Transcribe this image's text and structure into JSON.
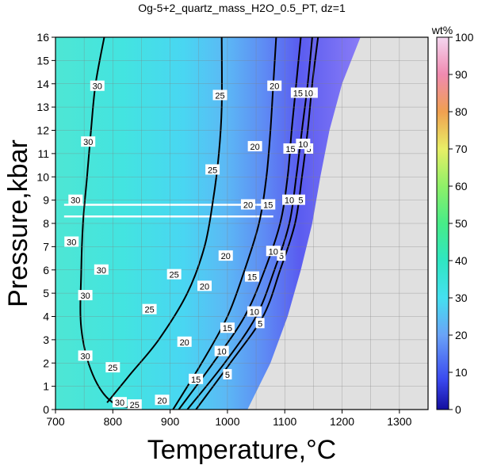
{
  "chart_data": {
    "type": "heatmap",
    "title": "Og-5+2_quartz_mass_H2O_0.5_PT, dz=1",
    "xlabel": "Temperature,°C",
    "ylabel": "Pressure,kbar",
    "xlim": [
      700,
      1350
    ],
    "ylim": [
      0,
      16
    ],
    "xticks": [
      700,
      800,
      900,
      1000,
      1100,
      1200,
      1300
    ],
    "yticks": [
      0,
      1,
      2,
      3,
      4,
      5,
      6,
      7,
      8,
      9,
      10,
      11,
      12,
      13,
      14,
      15,
      16
    ],
    "grid": true,
    "colorbar": {
      "label": "wt%",
      "range": [
        0,
        100
      ],
      "ticks": [
        0,
        10,
        20,
        30,
        40,
        50,
        60,
        70,
        80,
        90,
        100
      ]
    },
    "no_data_color": "#e0e0e0",
    "solidus_boundary": [
      [
        1035,
        0
      ],
      [
        1075,
        2
      ],
      [
        1105,
        4
      ],
      [
        1128,
        6
      ],
      [
        1148,
        8
      ],
      [
        1162,
        10
      ],
      [
        1178,
        12
      ],
      [
        1200,
        14
      ],
      [
        1232,
        16
      ]
    ],
    "contours": [
      {
        "level": 5,
        "points": [
          [
            945,
            0
          ],
          [
            1005,
            2
          ],
          [
            1062,
            4
          ],
          [
            1092,
            6
          ],
          [
            1118,
            8
          ],
          [
            1130,
            10
          ],
          [
            1140,
            12
          ],
          [
            1148,
            14
          ],
          [
            1158,
            16
          ]
        ],
        "labels": [
          [
            1000,
            1.5
          ],
          [
            1057,
            3.7
          ],
          [
            1094,
            6.6
          ],
          [
            1128,
            9
          ],
          [
            1142,
            11.2
          ],
          [
            1150,
            13.6
          ]
        ]
      },
      {
        "level": 10,
        "points": [
          [
            930,
            0
          ],
          [
            995,
            2
          ],
          [
            1050,
            4
          ],
          [
            1082,
            6
          ],
          [
            1108,
            8
          ],
          [
            1120,
            10
          ],
          [
            1130,
            12
          ],
          [
            1140,
            14
          ],
          [
            1148,
            16
          ]
        ],
        "labels": [
          [
            990,
            2.5
          ],
          [
            1047,
            4.2
          ],
          [
            1080,
            6.8
          ],
          [
            1108,
            9
          ],
          [
            1132,
            11.4
          ],
          [
            1141,
            13.6
          ]
        ]
      },
      {
        "level": 15,
        "points": [
          [
            915,
            0
          ],
          [
            975,
            2
          ],
          [
            1030,
            4
          ],
          [
            1065,
            6
          ],
          [
            1092,
            8
          ],
          [
            1105,
            10
          ],
          [
            1112,
            12
          ],
          [
            1120,
            14
          ],
          [
            1128,
            16
          ]
        ],
        "labels": [
          [
            945,
            1.3
          ],
          [
            1000,
            3.5
          ],
          [
            1043,
            5.7
          ],
          [
            1071,
            8.8
          ],
          [
            1110,
            11.2
          ],
          [
            1123,
            13.6
          ]
        ]
      },
      {
        "level": 20,
        "points": [
          [
            905,
            0
          ],
          [
            955,
            2
          ],
          [
            1000,
            4
          ],
          [
            1030,
            6
          ],
          [
            1055,
            8
          ],
          [
            1068,
            10
          ],
          [
            1075,
            12
          ],
          [
            1080,
            14
          ],
          [
            1085,
            16
          ]
        ],
        "labels": [
          [
            886,
            0.4
          ],
          [
            925,
            2.9
          ],
          [
            960,
            5.3
          ],
          [
            997,
            6.6
          ],
          [
            1036,
            8.8
          ],
          [
            1048,
            11.3
          ],
          [
            1082,
            13.9
          ]
        ]
      },
      {
        "level": 25,
        "points": [
          [
            790,
            0.3
          ],
          [
            830,
            1.5
          ],
          [
            880,
            3.0
          ],
          [
            930,
            5.0
          ],
          [
            960,
            7.0
          ],
          [
            975,
            9.0
          ],
          [
            985,
            11
          ],
          [
            990,
            13
          ],
          [
            990,
            16
          ]
        ],
        "labels": [
          [
            838,
            0.2
          ],
          [
            800,
            1.8
          ],
          [
            864,
            4.3
          ],
          [
            907,
            5.8
          ],
          [
            974,
            10.3
          ],
          [
            987,
            13.5
          ]
        ]
      },
      {
        "level": 30,
        "points": [
          [
            850,
            0.05
          ],
          [
            800,
            0.3
          ],
          [
            765,
            1.5
          ],
          [
            745,
            3.5
          ],
          [
            745,
            6.0
          ],
          [
            748,
            8.0
          ],
          [
            755,
            10
          ],
          [
            762,
            12
          ],
          [
            770,
            14
          ],
          [
            785,
            16
          ]
        ],
        "labels": [
          [
            812,
            0.3
          ],
          [
            752,
            2.3
          ],
          [
            752,
            4.9
          ],
          [
            780,
            6.0
          ],
          [
            728,
            7.2
          ],
          [
            735,
            9.0
          ],
          [
            757,
            11.5
          ],
          [
            773,
            13.9
          ]
        ]
      }
    ],
    "white_bands_P": [
      8.3,
      8.8
    ]
  }
}
